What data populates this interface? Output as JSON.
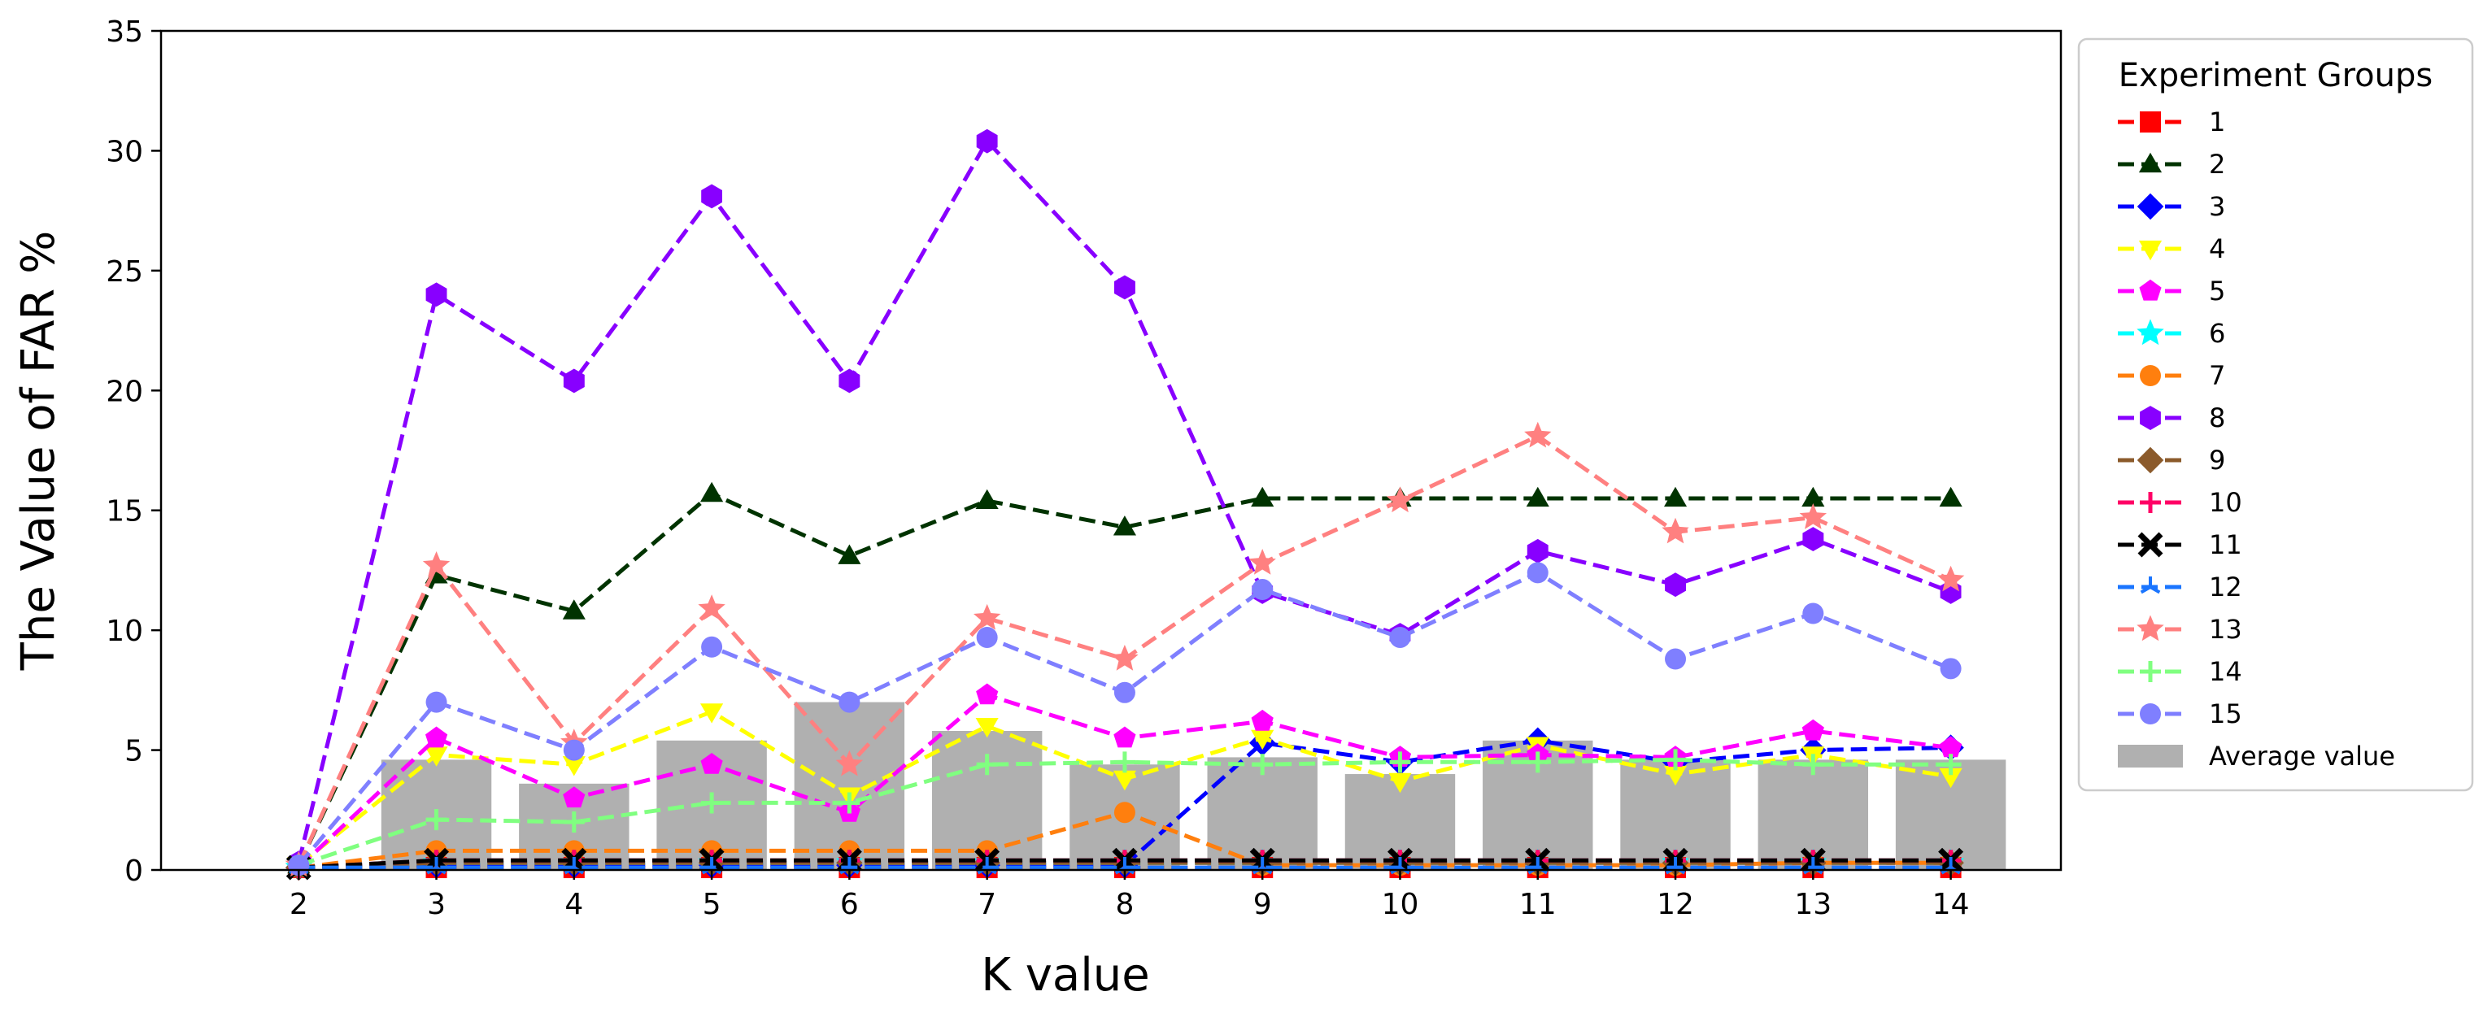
{
  "chart_data": {
    "type": "line",
    "title": "",
    "xlabel": "K value",
    "ylabel": "The Value of FAR %",
    "x": [
      2,
      3,
      4,
      5,
      6,
      7,
      8,
      9,
      10,
      11,
      12,
      13,
      14
    ],
    "x_tick_labels": [
      "2",
      "3",
      "4",
      "5",
      "6",
      "7",
      "8",
      "9",
      "10",
      "11",
      "12",
      "13",
      "14"
    ],
    "ylim": [
      0,
      35
    ],
    "y_ticks": [
      0,
      5,
      10,
      15,
      20,
      25,
      30,
      35
    ],
    "y_tick_labels": [
      "0",
      "5",
      "10",
      "15",
      "20",
      "25",
      "30",
      "35"
    ],
    "legend_title": "Experiment Groups",
    "legend_position": "right-outside",
    "series": [
      {
        "name": "1",
        "color": "#ff0000",
        "marker": "square",
        "values": [
          0.1,
          0.1,
          0.1,
          0.1,
          0.1,
          0.1,
          0.1,
          0.1,
          0.1,
          0.1,
          0.1,
          0.1,
          0.1
        ]
      },
      {
        "name": "2",
        "color": "#003300",
        "marker": "triangle-up",
        "values": [
          0.2,
          12.3,
          10.8,
          15.7,
          13.1,
          15.4,
          14.3,
          15.5,
          15.5,
          15.5,
          15.5,
          15.5,
          15.5
        ]
      },
      {
        "name": "3",
        "color": "#0000ff",
        "marker": "diamond",
        "values": [
          0.1,
          0.2,
          0.2,
          0.2,
          0.2,
          0.2,
          0.2,
          5.3,
          4.5,
          5.4,
          4.5,
          5.0,
          5.1
        ]
      },
      {
        "name": "4",
        "color": "#ffff00",
        "marker": "triangle-down",
        "values": [
          0.2,
          4.8,
          4.4,
          6.6,
          3.1,
          6.0,
          3.8,
          5.5,
          3.7,
          5.2,
          4.0,
          4.8,
          3.9
        ]
      },
      {
        "name": "5",
        "color": "#ff00ff",
        "marker": "pentagon",
        "values": [
          0.1,
          5.5,
          3.0,
          4.4,
          2.4,
          7.3,
          5.5,
          6.2,
          4.7,
          4.8,
          4.7,
          5.8,
          5.1
        ]
      },
      {
        "name": "6",
        "color": "#00ffff",
        "marker": "star",
        "values": [
          0.1,
          0.3,
          0.3,
          0.3,
          0.3,
          0.3,
          0.3,
          0.3,
          0.3,
          0.3,
          0.3,
          0.3,
          0.3
        ]
      },
      {
        "name": "7",
        "color": "#ff7f0e",
        "marker": "circle",
        "values": [
          0.1,
          0.8,
          0.8,
          0.8,
          0.8,
          0.8,
          2.4,
          0.2,
          0.2,
          0.2,
          0.2,
          0.3,
          0.3
        ]
      },
      {
        "name": "8",
        "color": "#8800ff",
        "marker": "hexagon",
        "values": [
          0.3,
          24.0,
          20.4,
          28.1,
          20.4,
          30.4,
          24.3,
          11.6,
          9.8,
          13.3,
          11.9,
          13.8,
          11.6
        ]
      },
      {
        "name": "9",
        "color": "#8b5a2b",
        "marker": "diamond",
        "values": [
          0.1,
          0.3,
          0.3,
          0.3,
          0.3,
          0.3,
          0.3,
          0.3,
          0.3,
          0.3,
          0.3,
          0.3,
          0.3
        ]
      },
      {
        "name": "10",
        "color": "#ff0066",
        "marker": "plus",
        "values": [
          0.1,
          0.4,
          0.4,
          0.4,
          0.4,
          0.4,
          0.4,
          0.4,
          0.4,
          0.4,
          0.4,
          0.4,
          0.4
        ]
      },
      {
        "name": "11",
        "color": "#000000",
        "marker": "x",
        "values": [
          0.1,
          0.4,
          0.4,
          0.4,
          0.4,
          0.4,
          0.4,
          0.4,
          0.4,
          0.4,
          0.4,
          0.4,
          0.4
        ]
      },
      {
        "name": "12",
        "color": "#1a75ff",
        "marker": "tri",
        "values": [
          0.1,
          0.1,
          0.1,
          0.1,
          0.1,
          0.1,
          0.1,
          0.1,
          0.1,
          0.1,
          0.1,
          0.1,
          0.1
        ]
      },
      {
        "name": "13",
        "color": "#ff8080",
        "marker": "star",
        "values": [
          0.2,
          12.7,
          5.3,
          10.9,
          4.4,
          10.5,
          8.8,
          12.8,
          15.4,
          18.1,
          14.1,
          14.7,
          12.1
        ]
      },
      {
        "name": "14",
        "color": "#80ff80",
        "marker": "plus",
        "values": [
          0.2,
          2.1,
          2.0,
          2.8,
          2.8,
          4.4,
          4.5,
          4.4,
          4.5,
          4.5,
          4.6,
          4.4,
          4.4
        ]
      },
      {
        "name": "15",
        "color": "#7f7fff",
        "marker": "circle",
        "values": [
          0.2,
          7.0,
          5.0,
          9.3,
          7.0,
          9.7,
          7.4,
          11.7,
          9.7,
          12.4,
          8.8,
          10.7,
          8.4
        ]
      }
    ],
    "bars": {
      "name": "Average value",
      "color": "#b0b0b0",
      "x": [
        3,
        4,
        5,
        6,
        7,
        8,
        9,
        10,
        11,
        12,
        13,
        14
      ],
      "values": [
        4.6,
        3.6,
        5.4,
        7.0,
        5.8,
        4.4,
        4.7,
        4.0,
        5.4,
        4.6,
        4.6,
        4.6
      ]
    }
  }
}
